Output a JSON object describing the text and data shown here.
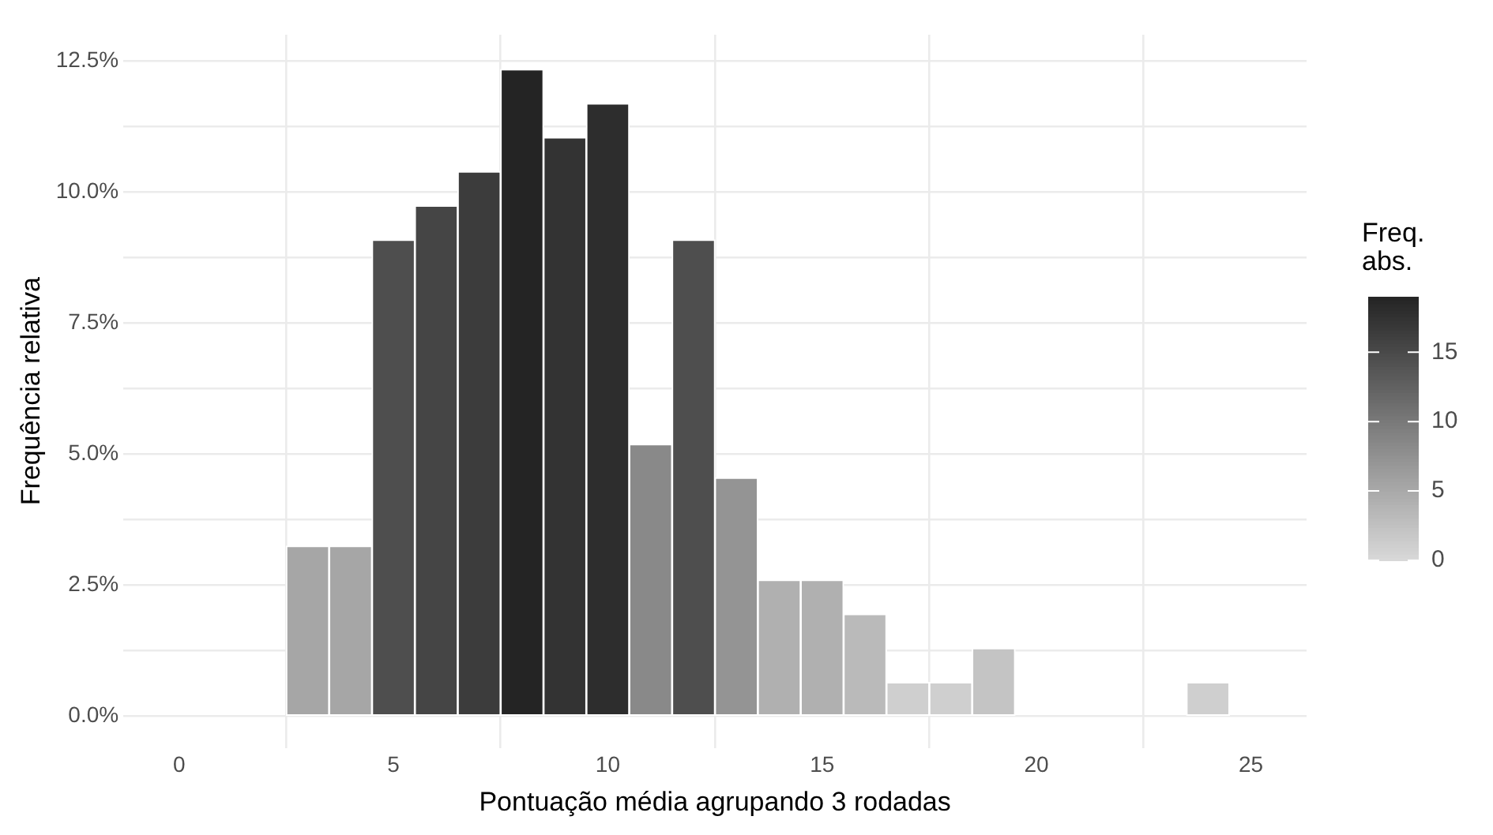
{
  "chart_data": {
    "type": "histogram",
    "xlabel": "Pontuação média agrupando 3 rodadas",
    "ylabel": "Frequência relativa",
    "clabel": "Freq.\nabs.",
    "bins": [
      -0.5,
      0.5,
      1.5,
      2.5,
      3.5,
      4.5,
      5.5,
      6.5,
      7.5,
      8.5,
      9.5,
      10.5,
      11.5,
      12.5,
      13.5,
      14.5,
      15.5,
      16.5,
      17.5,
      18.5,
      19.5,
      20.5,
      21.5,
      22.5,
      23.5,
      24.5,
      25.5
    ],
    "values": [
      0,
      0,
      0,
      3.25,
      3.25,
      9.09,
      9.74,
      10.39,
      12.34,
      11.04,
      11.69,
      5.19,
      9.09,
      4.55,
      2.6,
      2.6,
      1.95,
      0.65,
      0.65,
      1.3,
      0,
      0,
      0,
      0,
      0.65,
      0
    ],
    "colors": [
      "#d9d9d9",
      "#d9d9d9",
      "#d9d9d9",
      "#a6a6a6",
      "#a6a6a6",
      "#4e4e4e",
      "#454545",
      "#3c3c3c",
      "#242424",
      "#333333",
      "#2d2d2d",
      "#898989",
      "#4e4e4e",
      "#949494",
      "#b0b0b0",
      "#b0b0b0",
      "#bababa",
      "#cfcfcf",
      "#cfcfcf",
      "#c4c4c4",
      "#d9d9d9",
      "#d9d9d9",
      "#d9d9d9",
      "#d9d9d9",
      "#cfcfcf",
      "#d9d9d9"
    ],
    "xlim": [
      -1.3,
      26.3
    ],
    "xticks": [
      0,
      5,
      10,
      15,
      20,
      25
    ],
    "ylim": [
      -0.6,
      13
    ],
    "yticks": [
      {
        "value": 0,
        "label": "0.0%"
      },
      {
        "value": 1.25,
        "label": null
      },
      {
        "value": 2.5,
        "label": "2.5%"
      },
      {
        "value": 3.75,
        "label": null
      },
      {
        "value": 5,
        "label": "5.0%"
      },
      {
        "value": 6.25,
        "label": null
      },
      {
        "value": 7.5,
        "label": "7.5%"
      },
      {
        "value": 8.75,
        "label": null
      },
      {
        "value": 10,
        "label": "10.0%"
      },
      {
        "value": 11.25,
        "label": null
      },
      {
        "value": 12.5,
        "label": "12.5%"
      }
    ],
    "clim": [
      0,
      19
    ],
    "cticks": [
      0,
      5,
      10,
      15
    ],
    "grid": true
  }
}
